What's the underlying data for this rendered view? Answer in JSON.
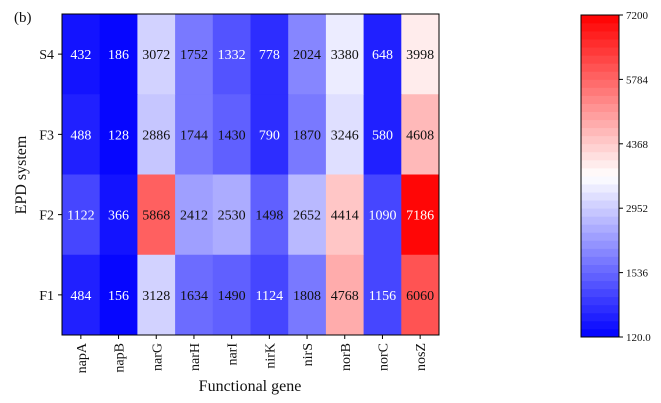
{
  "chart_data": {
    "type": "heatmap",
    "panel_label": "(b)",
    "xlabel": "Functional gene",
    "ylabel": "EPD system",
    "x_categories": [
      "napA",
      "napB",
      "narG",
      "narH",
      "narI",
      "nirK",
      "nirS",
      "norB",
      "norC",
      "nosZ"
    ],
    "y_categories": [
      "S4",
      "F3",
      "F2",
      "F1"
    ],
    "values": [
      [
        432,
        186,
        3072,
        1752,
        1332,
        778,
        2024,
        3380,
        648,
        3998
      ],
      [
        488,
        128,
        2886,
        1744,
        1430,
        790,
        1870,
        3246,
        580,
        4608
      ],
      [
        1122,
        366,
        5868,
        2412,
        2530,
        1498,
        2652,
        4414,
        1090,
        7186
      ],
      [
        484,
        156,
        3128,
        1634,
        1490,
        1124,
        1808,
        4768,
        1156,
        6060
      ]
    ],
    "colorbar": {
      "min": 120.0,
      "max": 7200,
      "ticks": [
        "7200",
        "5784",
        "4368",
        "2952",
        "1536",
        "120.0"
      ],
      "tick_values": [
        7200,
        5784,
        4368,
        2952,
        1536,
        120.0
      ],
      "colors": [
        "#0000ff",
        "#ffffff",
        "#ff0000"
      ],
      "levels": 40
    }
  }
}
